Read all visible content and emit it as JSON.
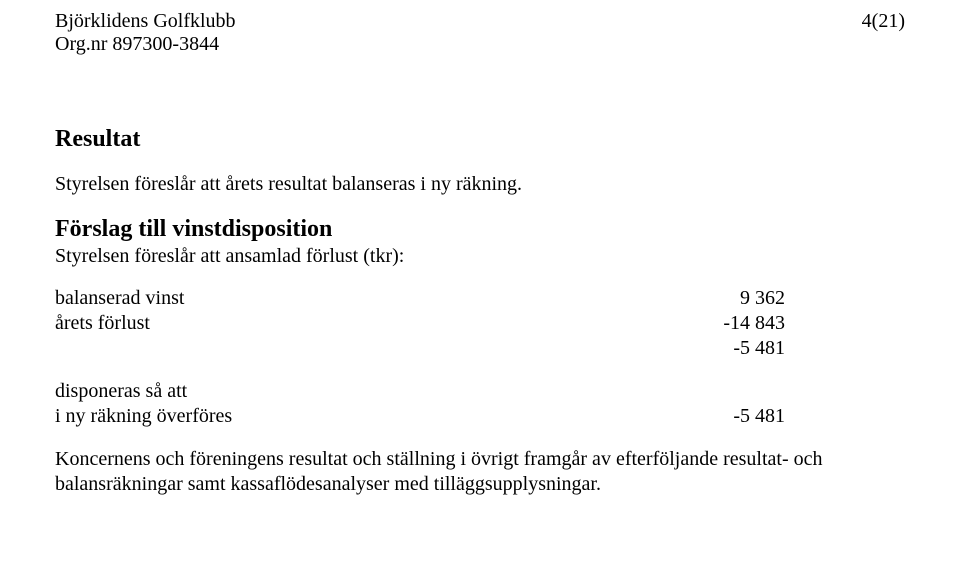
{
  "header": {
    "org_name": "Björklidens Golfklubb",
    "org_nr_line": "Org.nr 897300-3844",
    "page_indicator": "4(21)"
  },
  "section": {
    "title": "Resultat",
    "intro": "Styrelsen föreslår att årets resultat balanseras i ny räkning."
  },
  "subsection": {
    "title": "Förslag till vinstdisposition",
    "subtitle": "Styrelsen föreslår att ansamlad förlust (tkr):"
  },
  "rows": {
    "balanserad_label": "balanserad vinst",
    "balanserad_value": "9 362",
    "arets_label": "årets förlust",
    "arets_value": "-14 843",
    "sum_value": "-5 481",
    "disp_label": "disponeras så att",
    "over_label": "i ny räkning överföres",
    "over_value": "-5 481"
  },
  "footer": {
    "line1": "Koncernens och föreningens resultat och ställning i övrigt framgår av efterföljande resultat- och",
    "line2": "balansräkningar samt kassaflödesanalyser med tilläggsupplysningar."
  }
}
